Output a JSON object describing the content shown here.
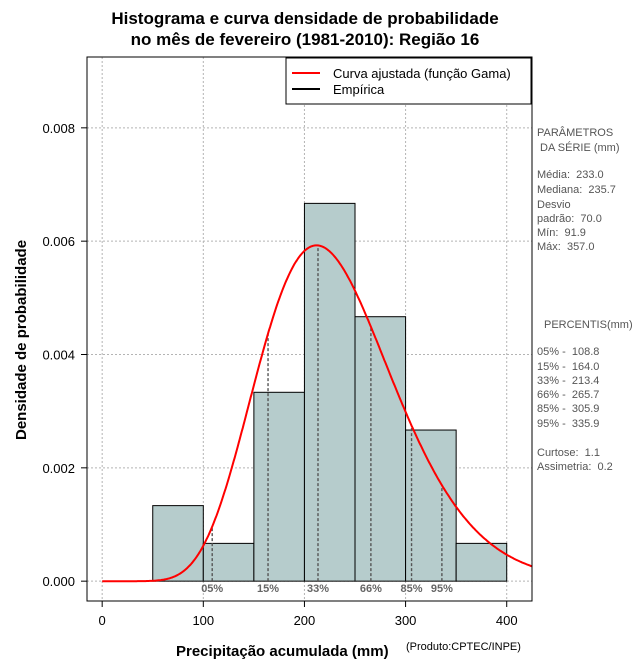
{
  "chart_data": {
    "type": "histogram",
    "title_line1": "Histograma e curva densidade de probabilidade",
    "title_line2": "no mês de fevereiro (1981-2010): Região 16",
    "xlabel": "Precipitação acumulada (mm)",
    "ylabel": "Densidade de probabilidade",
    "credit": "(Produto:CPTEC/INPE)",
    "xlim": [
      -15,
      425
    ],
    "ylim": [
      -0.00035,
      0.00925
    ],
    "x_ticks": [
      0,
      100,
      200,
      300,
      400
    ],
    "y_ticks": [
      0.0,
      0.002,
      0.004,
      0.006,
      0.008
    ],
    "y_tick_labels": [
      "0.000",
      "0.002",
      "0.004",
      "0.006",
      "0.008"
    ],
    "bins": [
      {
        "start": 50,
        "end": 100,
        "density": 0.001333
      },
      {
        "start": 100,
        "end": 150,
        "density": 0.000667
      },
      {
        "start": 150,
        "end": 200,
        "density": 0.003333
      },
      {
        "start": 200,
        "end": 250,
        "density": 0.006667
      },
      {
        "start": 250,
        "end": 300,
        "density": 0.004667
      },
      {
        "start": 300,
        "end": 350,
        "density": 0.002667
      },
      {
        "start": 350,
        "end": 400,
        "density": 0.000667
      }
    ],
    "curve": {
      "name": "Curva ajustada (função Gama)",
      "mean": 233.0,
      "sd": 70.0,
      "color": "#ff0000"
    },
    "empirical_name": "Empírica",
    "bar_color": "#b6cccc",
    "percentile_markers": [
      {
        "label": "05%",
        "x": 108.8
      },
      {
        "label": "15%",
        "x": 164.0
      },
      {
        "label": "33%",
        "x": 213.4
      },
      {
        "label": "66%",
        "x": 265.7
      },
      {
        "label": "85%",
        "x": 305.9
      },
      {
        "label": "95%",
        "x": 335.9
      }
    ]
  },
  "stats_panel": {
    "heading1": "PARÂMETROS",
    "heading2": " DA SÉRIE (mm)",
    "lines": [
      "Média:  233.0",
      "Mediana:  235.7",
      "Desvio",
      "padrão:  70.0",
      "Mín:  91.9",
      "Máx:  357.0"
    ]
  },
  "percentile_panel": {
    "heading": "PERCENTIS(mm)",
    "lines": [
      "05% -  108.8",
      "15% -  164.0",
      "33% -  213.4",
      "66% -  265.7",
      "85% -  305.9",
      "95% -  335.9"
    ],
    "extra": [
      "Curtose:  1.1",
      "Assimetria:  0.2"
    ]
  }
}
